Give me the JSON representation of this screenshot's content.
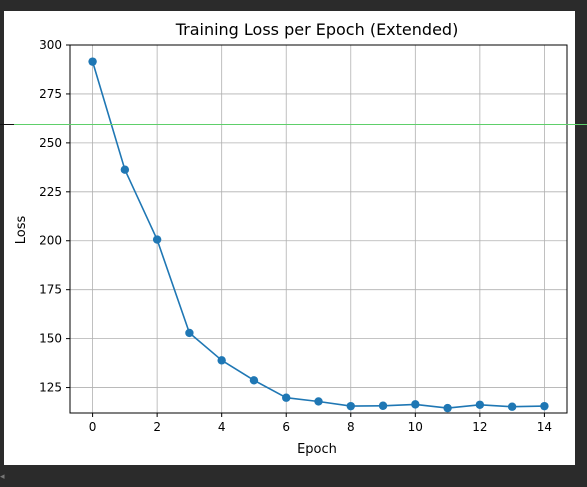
{
  "chart_data": {
    "type": "line",
    "title": "Training Loss per Epoch (Extended)",
    "xlabel": "Epoch",
    "ylabel": "Loss",
    "xlim": [
      -0.7,
      14.7
    ],
    "ylim": [
      112,
      300
    ],
    "xticks": [
      0,
      2,
      4,
      6,
      8,
      10,
      12,
      14
    ],
    "yticks": [
      125,
      150,
      175,
      200,
      225,
      250,
      275,
      300
    ],
    "grid": true,
    "color": "#1f77b4",
    "series": [
      {
        "x": [
          0,
          1,
          2,
          3,
          4,
          5,
          6,
          7,
          8,
          9,
          10,
          11,
          12,
          13,
          14
        ],
        "values": [
          291.5,
          236.3,
          200.6,
          152.9,
          138.9,
          128.7,
          119.8,
          117.9,
          115.5,
          115.7,
          116.4,
          114.5,
          116.2,
          115.2,
          115.5
        ]
      }
    ]
  }
}
